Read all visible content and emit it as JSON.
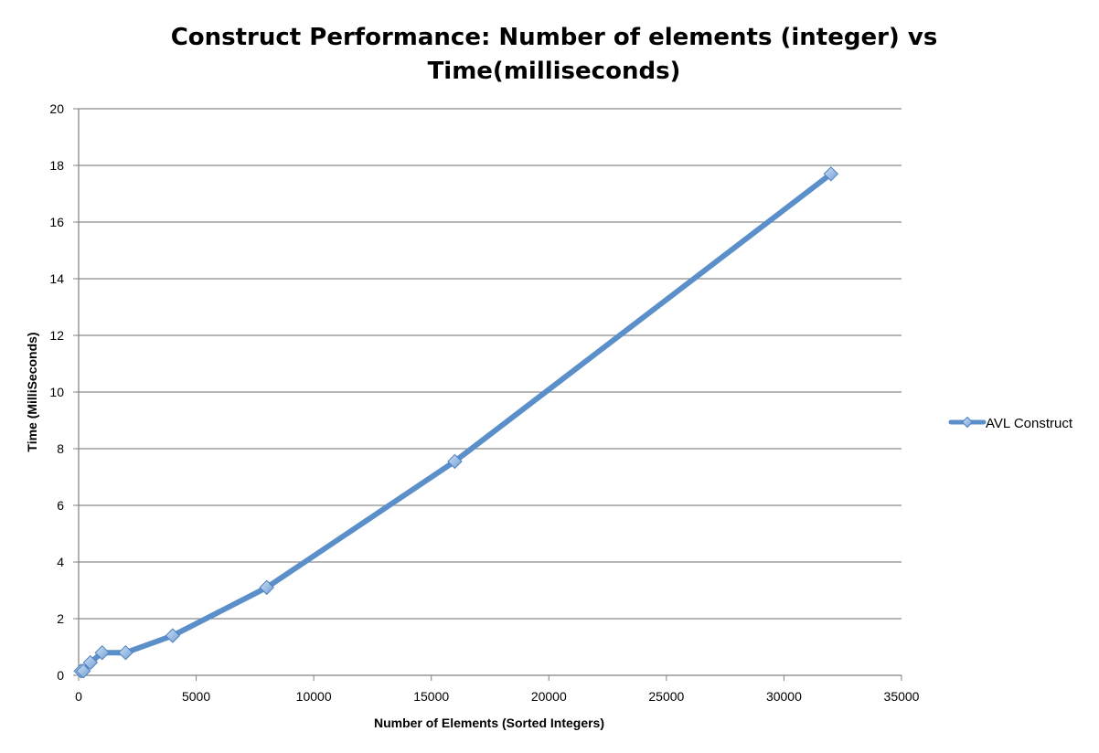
{
  "chart_data": {
    "type": "line",
    "title_lines": [
      "Construct Performance: Number of elements (integer) vs",
      "Time(milliseconds)"
    ],
    "xlabel": "Number of Elements (Sorted Integers)",
    "ylabel": "Time (MilliSeconds)",
    "xlim": [
      0,
      35000
    ],
    "ylim": [
      0,
      20
    ],
    "xticks": [
      0,
      5000,
      10000,
      15000,
      20000,
      25000,
      30000,
      35000
    ],
    "yticks": [
      0,
      2,
      4,
      6,
      8,
      10,
      12,
      14,
      16,
      18,
      20
    ],
    "grid": "horizontal",
    "legend_position": "right",
    "series": [
      {
        "name": "AVL Construct",
        "color": "#5b8fc9",
        "marker": "diamond",
        "x": [
          100,
          200,
          500,
          1000,
          2000,
          4000,
          8000,
          16000,
          32000
        ],
        "y": [
          0.15,
          0.15,
          0.45,
          0.8,
          0.8,
          1.4,
          3.1,
          7.55,
          17.7
        ]
      }
    ]
  }
}
